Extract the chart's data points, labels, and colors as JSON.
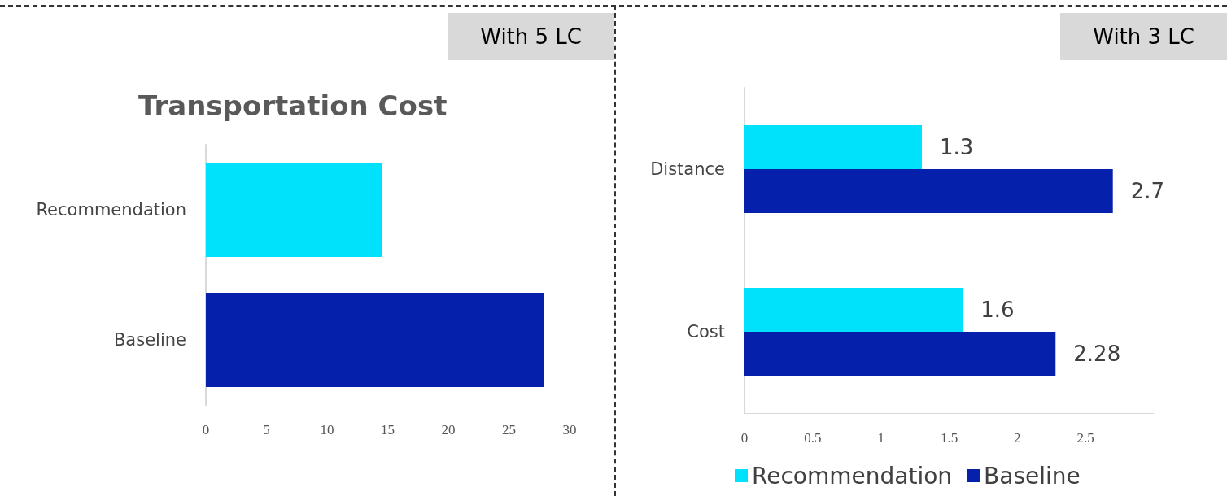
{
  "chart_data": [
    {
      "type": "bar",
      "orientation": "horizontal",
      "title": "Transportation Cost",
      "annotations": [
        "With 5 LC"
      ],
      "categories": [
        "Recommendation",
        "Baseline"
      ],
      "values": [
        14.5,
        27.9
      ],
      "colors": [
        "#00e1fc",
        "#0520aa"
      ],
      "xlim": [
        0,
        30
      ],
      "xticks": [
        0,
        5,
        10,
        15,
        20,
        25,
        30
      ],
      "grid": false,
      "legend": false
    },
    {
      "type": "bar",
      "orientation": "horizontal",
      "annotations": [
        "With 3 LC"
      ],
      "categories": [
        "Distance",
        "Cost"
      ],
      "series": [
        {
          "name": "Recommendation",
          "color": "#00e1fc",
          "values": [
            1.3,
            1.6
          ]
        },
        {
          "name": "Baseline",
          "color": "#0520aa",
          "values": [
            2.7,
            2.28
          ]
        }
      ],
      "xlim": [
        0,
        3
      ],
      "xticks": [
        0,
        0.5,
        1,
        1.5,
        2,
        2.5
      ],
      "data_labels": true,
      "grid": false,
      "legend": "bottom"
    }
  ]
}
